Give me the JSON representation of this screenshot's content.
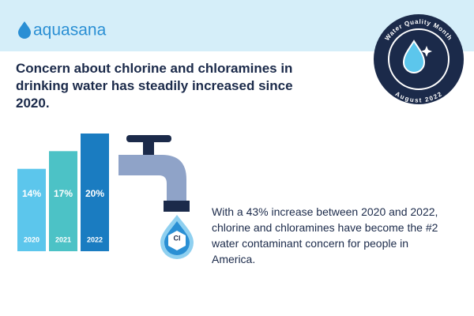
{
  "brand": "aquasana",
  "badge": {
    "top": "Water Quality Month",
    "bottom": "August 2022"
  },
  "chart_data": {
    "type": "bar",
    "title": "Concern about chlorine and chloramines in drinking water has steadily increased since 2020.",
    "categories": [
      "2020",
      "2021",
      "2022"
    ],
    "values": [
      14,
      17,
      20
    ],
    "value_labels": [
      "14%",
      "17%",
      "20%"
    ],
    "colors": [
      "#5cc6ec",
      "#4cc2c6",
      "#1a7cc1"
    ],
    "icon_label": "Cl",
    "annotation": "With a 43% increase between 2020 and 2022, chlorine and chloramines have become the #2 water contaminant concern for people in America."
  }
}
